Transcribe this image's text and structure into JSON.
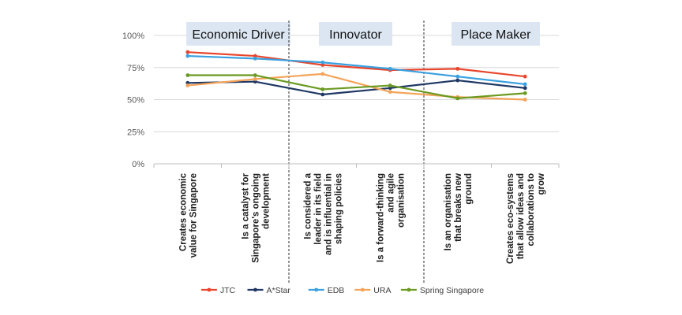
{
  "chart_data": {
    "type": "line",
    "title": "",
    "xlabel": "",
    "ylabel": "",
    "ylim": [
      0,
      1
    ],
    "yticks": [
      "0%",
      "25%",
      "50%",
      "75%",
      "100%"
    ],
    "ytick_values": [
      0,
      0.25,
      0.5,
      0.75,
      1.0
    ],
    "categories": [
      [
        "Creates economic",
        "value for Singapore"
      ],
      [
        "Is a catalyst for",
        "Singapore's ongoing",
        "development"
      ],
      [
        "Is considered a",
        "leader in its field",
        "and is influential in",
        "shaping policies"
      ],
      [
        "Is a forward-thinking",
        "and agile",
        "organisation"
      ],
      [
        "Is an organisation",
        "that breaks new",
        "ground"
      ],
      [
        "Creates eco-systems",
        "that allow ideas and",
        "collaborations to",
        "grow"
      ]
    ],
    "sections": [
      {
        "label": "Economic Driver"
      },
      {
        "label": "Innovator"
      },
      {
        "label": "Place Maker"
      }
    ],
    "series": [
      {
        "name": "JTC",
        "color": "#e8452c",
        "values": [
          0.87,
          0.84,
          0.77,
          0.73,
          0.74,
          0.68
        ]
      },
      {
        "name": "A*Star",
        "color": "#1f3864",
        "values": [
          0.63,
          0.64,
          0.54,
          0.59,
          0.65,
          0.59
        ]
      },
      {
        "name": "EDB",
        "color": "#3aa0e0",
        "values": [
          0.84,
          0.82,
          0.79,
          0.74,
          0.68,
          0.62
        ]
      },
      {
        "name": "URA",
        "color": "#f4a45a",
        "values": [
          0.61,
          0.66,
          0.7,
          0.56,
          0.52,
          0.5
        ]
      },
      {
        "name": "Spring Singapore",
        "color": "#6a9a22",
        "values": [
          0.69,
          0.69,
          0.58,
          0.61,
          0.51,
          0.55
        ]
      }
    ],
    "legend_position": "bottom",
    "grid": true
  }
}
